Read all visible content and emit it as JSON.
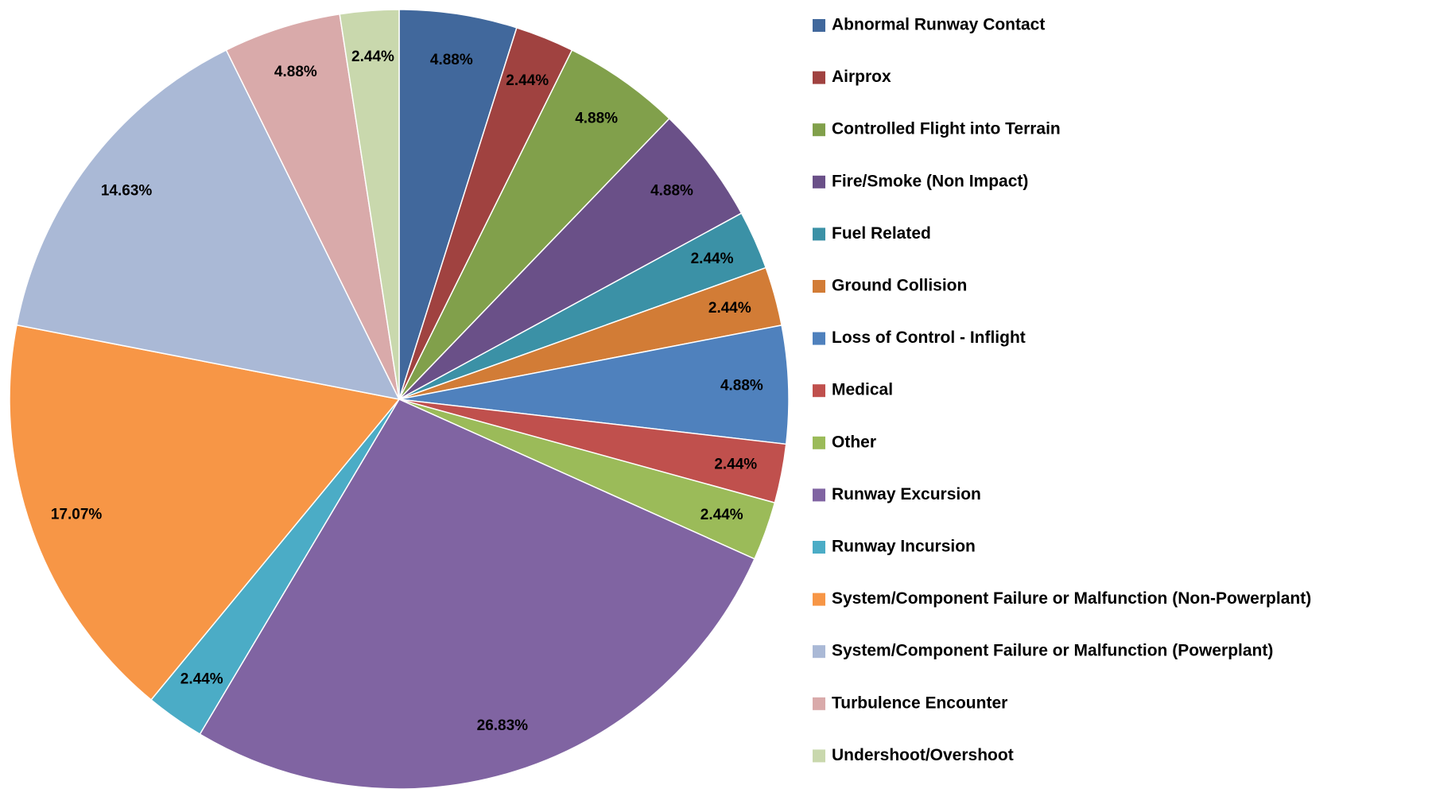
{
  "chart_data": {
    "type": "pie",
    "categories": [
      "Abnormal Runway Contact",
      "Airprox",
      "Controlled Flight into Terrain",
      "Fire/Smoke (Non Impact)",
      "Fuel Related",
      "Ground Collision",
      "Loss of Control - Inflight",
      "Medical",
      "Other",
      "Runway Excursion",
      "Runway Incursion",
      "System/Component Failure or Malfunction (Non-Powerplant)",
      "System/Component Failure or Malfunction (Powerplant)",
      "Turbulence Encounter",
      "Undershoot/Overshoot"
    ],
    "values": [
      4.88,
      2.44,
      4.88,
      4.88,
      2.44,
      2.44,
      4.88,
      2.44,
      2.44,
      26.83,
      2.44,
      17.07,
      14.63,
      4.88,
      2.44
    ],
    "value_labels": [
      "4.88%",
      "2.44%",
      "4.88%",
      "4.88%",
      "2.44%",
      "2.44%",
      "4.88%",
      "2.44%",
      "2.44%",
      "26.83%",
      "2.44%",
      "17.07%",
      "14.63%",
      "4.88%",
      "2.44%"
    ],
    "colors": [
      "#41689c",
      "#a04240",
      "#81a04b",
      "#6a5088",
      "#3b91a6",
      "#d27c36",
      "#4f81bd",
      "#c0504d",
      "#9bbb59",
      "#8064a2",
      "#4bacc6",
      "#f79646",
      "#aab9d6",
      "#d9aaaa",
      "#c9d8ad"
    ],
    "legend": "right"
  }
}
